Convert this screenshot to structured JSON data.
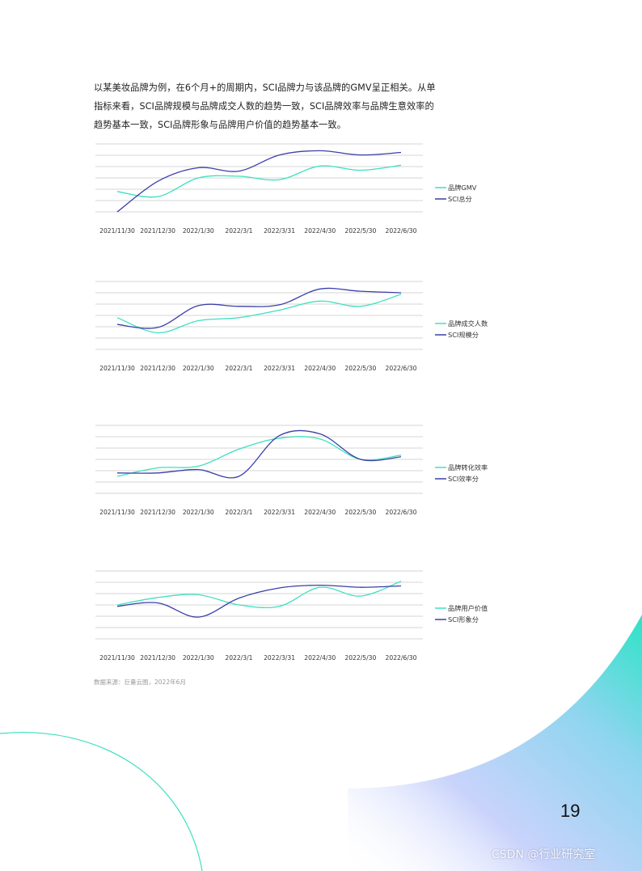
{
  "intro": {
    "lines": [
      "以某美妆品牌为例，在6个月+的周期内，SCI品牌力与该品牌的GMV呈正相关。从单",
      "指标来看，SCI品牌规模与品牌成交人数的趋势一致，SCI品牌效率与品牌生意效率的",
      "趋势基本一致，SCI品牌形象与品牌用户价值的趋势基本一致。"
    ]
  },
  "colors": {
    "teal": "#3ee0c0",
    "blue": "#3b3fa8",
    "purple": "#8a63d2"
  },
  "chart_data": [
    {
      "type": "line",
      "categories": [
        "2021/11/30",
        "2021/12/30",
        "2022/1/30",
        "2022/3/1",
        "2022/3/31",
        "2022/4/30",
        "2022/5/30",
        "2022/6/30"
      ],
      "series": [
        {
          "name": "品牌GMV",
          "values": [
            2.4,
            1.8,
            4.0,
            4.2,
            3.8,
            5.4,
            4.9,
            5.5
          ]
        },
        {
          "name": "SCI总分",
          "values": [
            0.0,
            3.6,
            5.2,
            4.8,
            6.7,
            7.2,
            6.7,
            7.0
          ]
        }
      ],
      "ylim": [
        0,
        8
      ],
      "legend": "right",
      "grid": true
    },
    {
      "type": "line",
      "categories": [
        "2021/11/30",
        "2021/12/30",
        "2022/1/30",
        "2022/3/1",
        "2022/3/31",
        "2022/4/30",
        "2022/5/30",
        "2022/6/30"
      ],
      "series": [
        {
          "name": "品牌成交人数",
          "values": [
            4.2,
            2.2,
            3.8,
            4.2,
            5.2,
            6.4,
            5.7,
            7.3
          ]
        },
        {
          "name": "SCI规模分",
          "values": [
            3.3,
            2.9,
            5.8,
            5.7,
            5.9,
            8.0,
            7.7,
            7.5
          ]
        }
      ],
      "ylim": [
        0,
        9
      ],
      "legend": "right",
      "grid": true
    },
    {
      "type": "line",
      "categories": [
        "2021/11/30",
        "2021/12/30",
        "2022/1/30",
        "2022/3/1",
        "2022/3/31",
        "2022/4/30",
        "2022/5/30",
        "2022/6/30"
      ],
      "series": [
        {
          "name": "品牌转化效率",
          "values": [
            2.0,
            3.0,
            3.2,
            5.2,
            6.5,
            6.4,
            4.0,
            4.5
          ]
        },
        {
          "name": "SCI效率分",
          "values": [
            2.4,
            2.4,
            2.8,
            2.0,
            6.8,
            7.0,
            4.0,
            4.3
          ]
        }
      ],
      "ylim": [
        0,
        8
      ],
      "legend": "right",
      "grid": true
    },
    {
      "type": "line",
      "categories": [
        "2021/11/30",
        "2021/12/30",
        "2022/1/30",
        "2022/3/1",
        "2022/3/31",
        "2022/4/30",
        "2022/5/30",
        "2022/6/30"
      ],
      "series": [
        {
          "name": "品牌用户价值",
          "values": [
            5.0,
            6.1,
            6.5,
            5.0,
            4.8,
            7.6,
            6.3,
            8.5
          ]
        },
        {
          "name": "SCI形象分",
          "values": [
            4.8,
            5.3,
            3.2,
            6.0,
            7.5,
            7.9,
            7.6,
            7.8
          ]
        }
      ],
      "ylim": [
        0,
        10
      ],
      "legend": "right",
      "grid": true
    }
  ],
  "source": "数据来源：巨量云图，2022年6月",
  "page_number": "19",
  "watermark": "CSDN @行业研究室"
}
